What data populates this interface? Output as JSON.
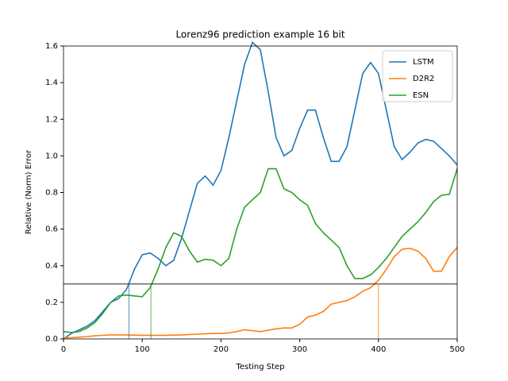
{
  "chart_data": {
    "type": "line",
    "title": "Lorenz96 prediction example 16 bit",
    "xlabel": "Testing Step",
    "ylabel": "Relative (Norm) Error",
    "x": [
      0,
      10,
      20,
      30,
      40,
      50,
      60,
      70,
      80,
      90,
      100,
      110,
      120,
      130,
      140,
      150,
      160,
      170,
      180,
      190,
      200,
      210,
      220,
      230,
      240,
      250,
      260,
      270,
      280,
      290,
      300,
      310,
      320,
      330,
      340,
      350,
      360,
      370,
      380,
      390,
      400,
      410,
      420,
      430,
      440,
      450,
      460,
      470,
      480,
      490,
      500
    ],
    "series": [
      {
        "name": "LSTM",
        "color": "#1f77b4",
        "crossing": 83,
        "values": [
          0,
          0.03,
          0.05,
          0.07,
          0.1,
          0.15,
          0.2,
          0.22,
          0.27,
          0.38,
          0.46,
          0.47,
          0.44,
          0.4,
          0.43,
          0.55,
          0.7,
          0.85,
          0.89,
          0.84,
          0.92,
          1.1,
          1.3,
          1.5,
          1.62,
          1.58,
          1.35,
          1.1,
          1.0,
          1.03,
          1.15,
          1.25,
          1.25,
          1.1,
          0.97,
          0.97,
          1.05,
          1.25,
          1.45,
          1.51,
          1.45,
          1.25,
          1.05,
          0.98,
          1.02,
          1.07,
          1.09,
          1.08,
          1.04,
          1.0,
          0.95
        ]
      },
      {
        "name": "D2R2",
        "color": "#ff7f0e",
        "crossing": 400,
        "values": [
          0.005,
          0.007,
          0.01,
          0.013,
          0.017,
          0.02,
          0.022,
          0.022,
          0.022,
          0.021,
          0.02,
          0.02,
          0.02,
          0.02,
          0.021,
          0.022,
          0.024,
          0.026,
          0.028,
          0.03,
          0.03,
          0.033,
          0.04,
          0.05,
          0.045,
          0.04,
          0.048,
          0.055,
          0.06,
          0.06,
          0.08,
          0.12,
          0.13,
          0.15,
          0.19,
          0.2,
          0.21,
          0.23,
          0.26,
          0.28,
          0.32,
          0.38,
          0.45,
          0.49,
          0.495,
          0.48,
          0.44,
          0.37,
          0.37,
          0.45,
          0.5
        ]
      },
      {
        "name": "ESN",
        "color": "#2ca02c",
        "crossing": 111,
        "values": [
          0.04,
          0.035,
          0.04,
          0.06,
          0.09,
          0.14,
          0.2,
          0.235,
          0.24,
          0.235,
          0.23,
          0.28,
          0.38,
          0.5,
          0.58,
          0.56,
          0.48,
          0.42,
          0.435,
          0.43,
          0.4,
          0.44,
          0.6,
          0.72,
          0.76,
          0.8,
          0.93,
          0.93,
          0.82,
          0.8,
          0.76,
          0.73,
          0.63,
          0.58,
          0.54,
          0.5,
          0.4,
          0.33,
          0.33,
          0.35,
          0.39,
          0.44,
          0.5,
          0.56,
          0.6,
          0.64,
          0.69,
          0.75,
          0.785,
          0.79,
          0.93
        ]
      }
    ],
    "threshold": 0.3,
    "xlim": [
      0,
      500
    ],
    "xticks": [
      0,
      100,
      200,
      300,
      400,
      500
    ],
    "ylim": [
      0,
      1.6
    ],
    "yticks": [
      {
        "value": 0,
        "label": "0.0"
      },
      0.2,
      0.4,
      0.6,
      0.8,
      {
        "value": 1,
        "label": "1.0"
      },
      1.2,
      1.4,
      1.6
    ],
    "legend": "upper right",
    "grid": false
  }
}
